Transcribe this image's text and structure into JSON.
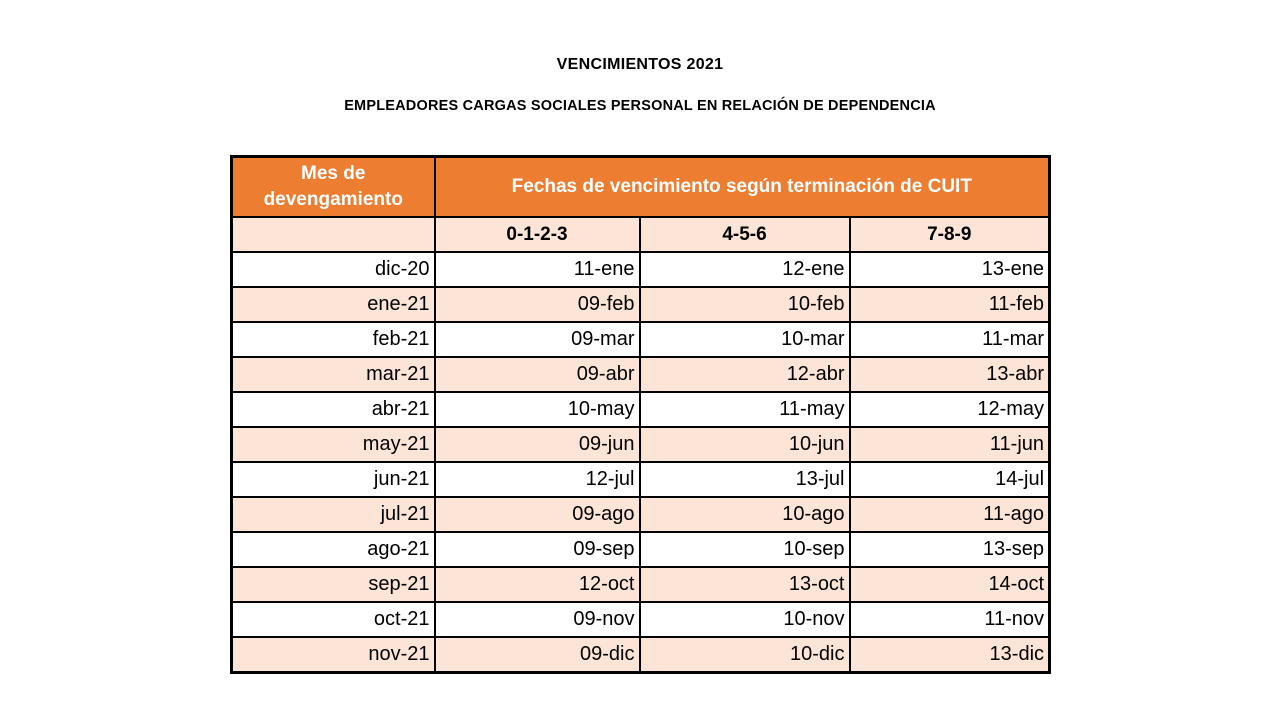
{
  "page": {
    "title": "VENCIMIENTOS 2021",
    "subtitle": "EMPLEADORES CARGAS SOCIALES PERSONAL EN RELACIÓN DE DEPENDENCIA"
  },
  "table": {
    "month_header": "Mes de devengamiento",
    "group_header": "Fechas de vencimiento según terminación de CUIT",
    "cuit_columns": [
      "0-1-2-3",
      "4-5-6",
      "7-8-9"
    ],
    "rows": [
      {
        "month": "dic-20",
        "dates": [
          "11-ene",
          "12-ene",
          "13-ene"
        ]
      },
      {
        "month": "ene-21",
        "dates": [
          "09-feb",
          "10-feb",
          "11-feb"
        ]
      },
      {
        "month": "feb-21",
        "dates": [
          "09-mar",
          "10-mar",
          "11-mar"
        ]
      },
      {
        "month": "mar-21",
        "dates": [
          "09-abr",
          "12-abr",
          "13-abr"
        ]
      },
      {
        "month": "abr-21",
        "dates": [
          "10-may",
          "11-may",
          "12-may"
        ]
      },
      {
        "month": "may-21",
        "dates": [
          "09-jun",
          "10-jun",
          "11-jun"
        ]
      },
      {
        "month": "jun-21",
        "dates": [
          "12-jul",
          "13-jul",
          "14-jul"
        ]
      },
      {
        "month": "jul-21",
        "dates": [
          "09-ago",
          "10-ago",
          "11-ago"
        ]
      },
      {
        "month": "ago-21",
        "dates": [
          "09-sep",
          "10-sep",
          "13-sep"
        ]
      },
      {
        "month": "sep-21",
        "dates": [
          "12-oct",
          "13-oct",
          "14-oct"
        ]
      },
      {
        "month": "oct-21",
        "dates": [
          "09-nov",
          "10-nov",
          "11-nov"
        ]
      },
      {
        "month": "nov-21",
        "dates": [
          "09-dic",
          "10-dic",
          "13-dic"
        ]
      }
    ]
  },
  "colors": {
    "header_orange": "#ED7D31",
    "row_peach": "#FCE4D6",
    "border_black": "#000000"
  }
}
